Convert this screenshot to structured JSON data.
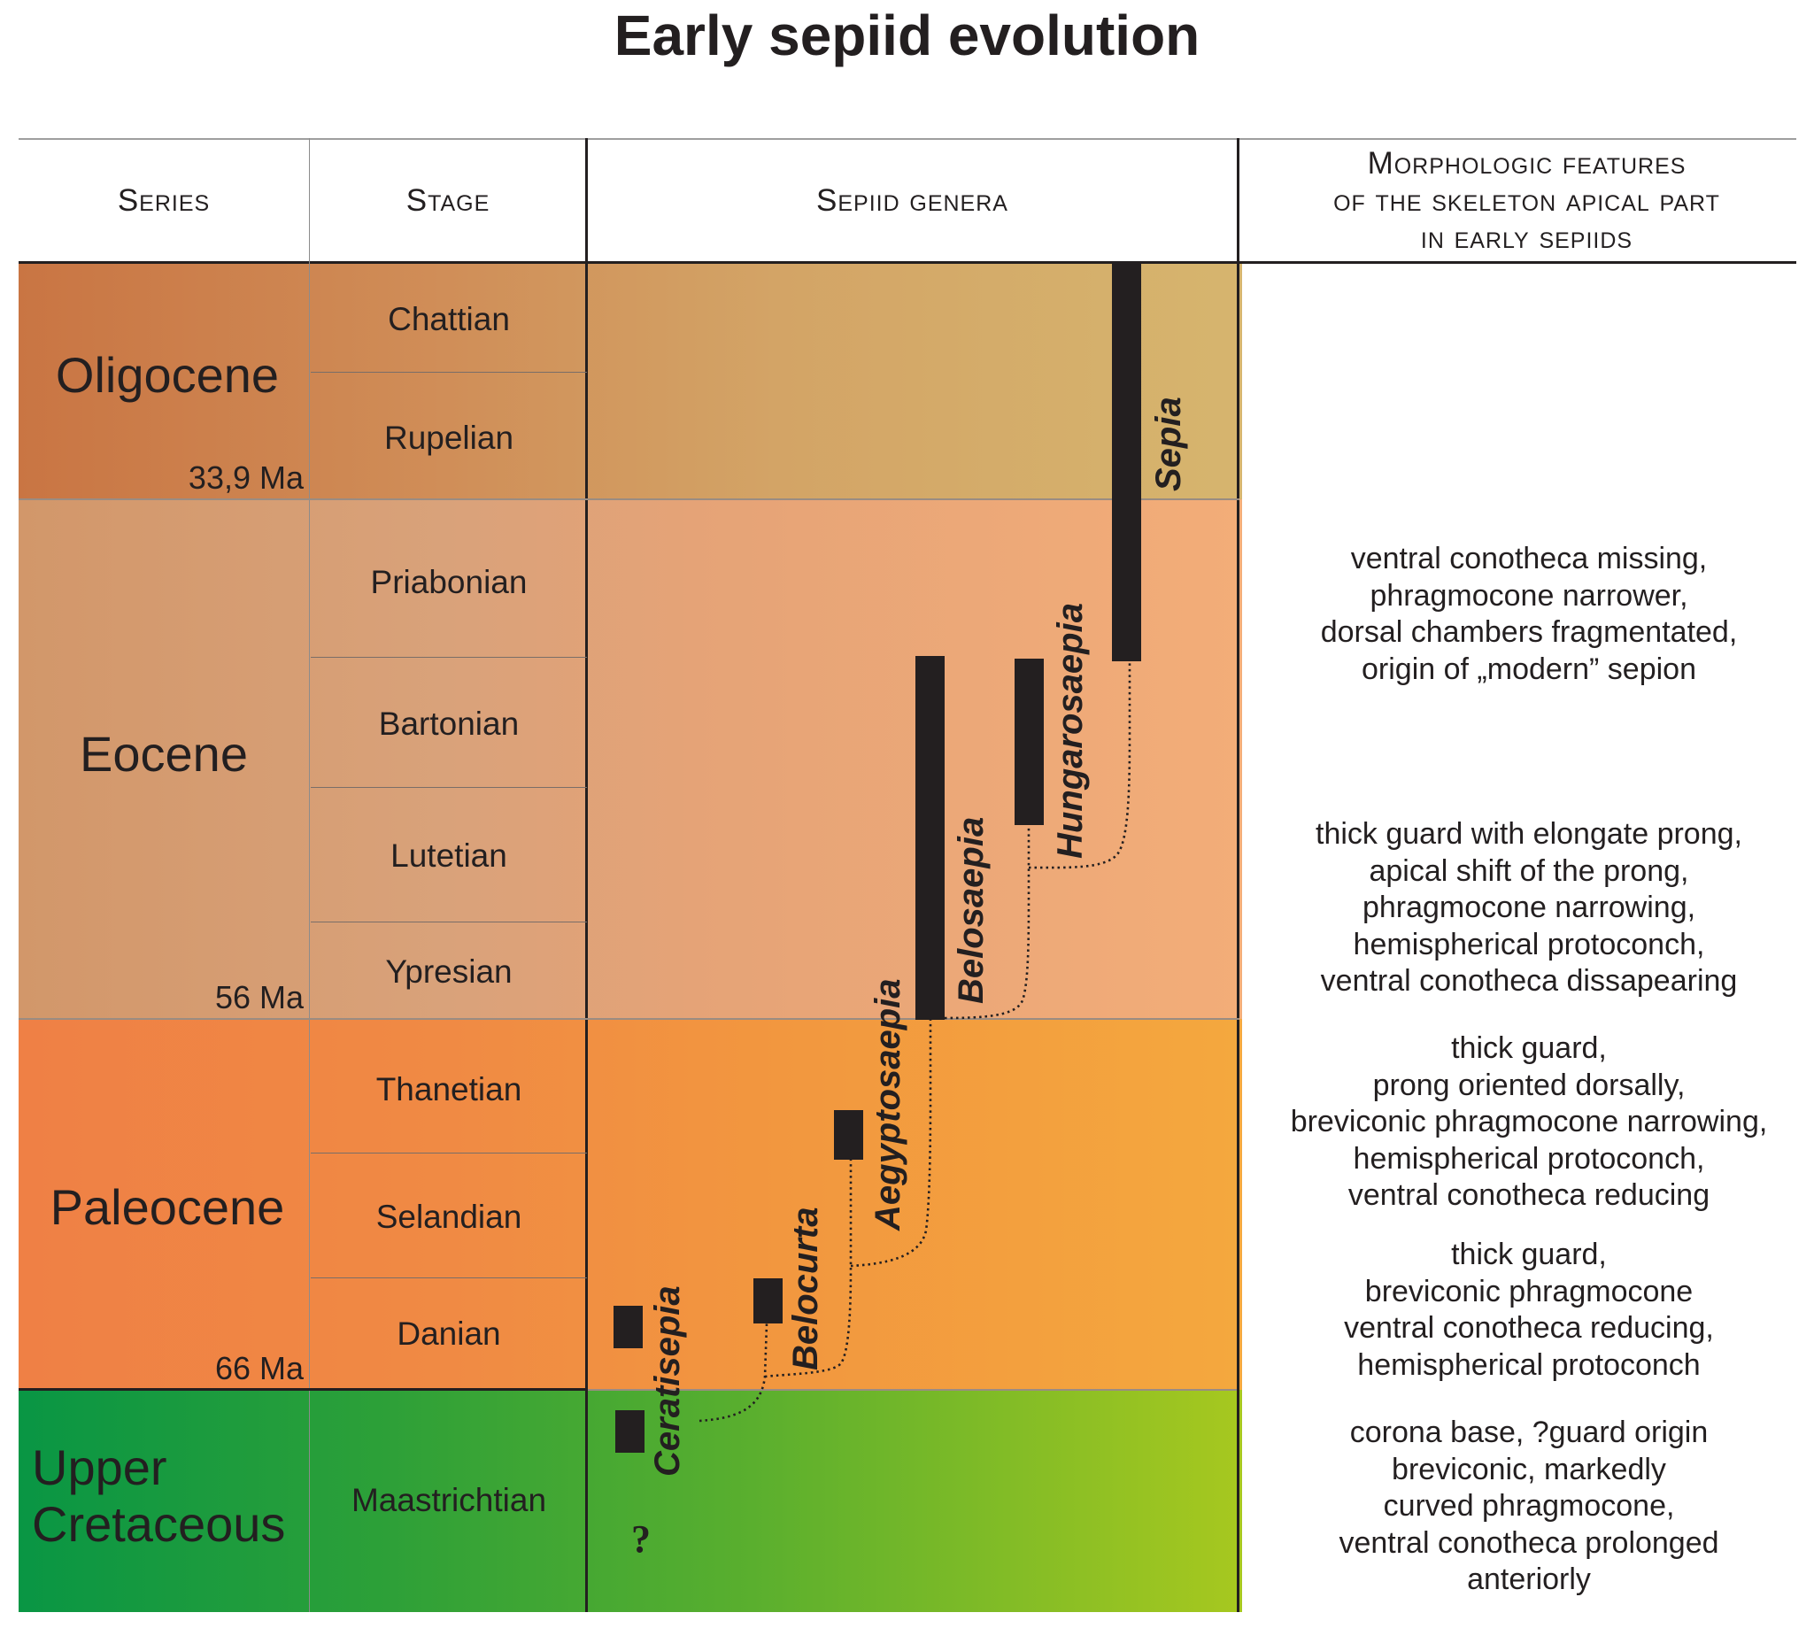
{
  "title": "Early sepiid evolution",
  "headers": {
    "series": "Series",
    "stage": "Stage",
    "genera": "Sepiid genera",
    "morph": [
      "Morphologic features",
      "of the skeleton apical part",
      "in early sepiids"
    ]
  },
  "series": [
    {
      "name": "Oligocene",
      "age": "33,9 Ma",
      "stages": [
        "Chattian",
        "Rupelian"
      ]
    },
    {
      "name": "Eocene",
      "age": "56 Ma",
      "stages": [
        "Priabonian",
        "Bartonian",
        "Lutetian",
        "Ypresian"
      ]
    },
    {
      "name": "Paleocene",
      "age": "66 Ma",
      "stages": [
        "Thanetian",
        "Selandian",
        "Danian"
      ]
    },
    {
      "name_lines": [
        "Upper",
        "Cretaceous"
      ],
      "stages": [
        "Maastrichtian"
      ]
    }
  ],
  "genera": [
    "Sepia",
    "Hungarosaepia",
    "Belosaepia",
    "Aegyptosaepia",
    "Belocurta",
    "Ceratisepia"
  ],
  "question_mark": "?",
  "morphology": [
    [
      "ventral conotheca missing,",
      "phragmocone narrower,",
      "dorsal chambers fragmentated,",
      "origin of „modern” sepion"
    ],
    [
      "thick guard with elongate prong,",
      "apical shift of the prong,",
      "phragmocone narrowing,",
      "hemispherical protoconch,",
      "ventral conotheca dissapearing"
    ],
    [
      "thick guard,",
      "prong oriented dorsally,",
      "breviconic phragmocone narrowing,",
      "hemispherical protoconch,",
      "ventral conotheca reducing"
    ],
    [
      "thick guard,",
      "breviconic phragmocone",
      "ventral conotheca reducing,",
      "hemispherical protoconch"
    ],
    [
      "corona base, ?guard origin",
      "breviconic, markedly",
      "curved phragmocone,",
      "ventral conotheca prolonged",
      "anteriorly"
    ]
  ],
  "colors": {
    "oligocene_series": "#c97543",
    "eocene_series": "#d29a6a",
    "paleocene_series": "#ef8146",
    "cretaceous_series": "#099844",
    "bars": "#231f20"
  }
}
